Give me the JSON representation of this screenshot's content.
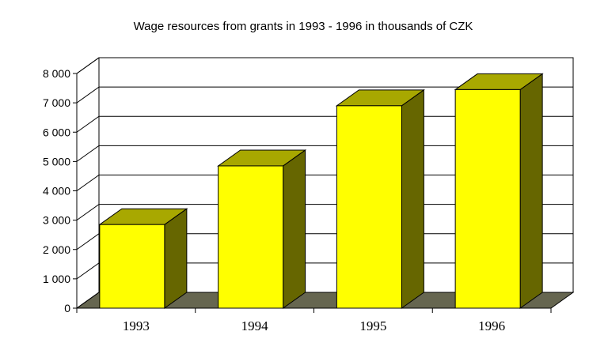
{
  "chart_data": {
    "type": "bar",
    "title": "Wage resources from grants in 1993 - 1996 in thousands of CZK",
    "xlabel": "",
    "ylabel": "",
    "categories": [
      "1993",
      "1994",
      "1995",
      "1996"
    ],
    "values": [
      2850,
      4850,
      6900,
      7450
    ],
    "ylim": [
      0,
      8000
    ],
    "yticks": [
      0,
      1000,
      2000,
      3000,
      4000,
      5000,
      6000,
      7000,
      8000
    ],
    "ytick_labels": [
      "0",
      "1 000",
      "2 000",
      "3 000",
      "4 000",
      "5 000",
      "6 000",
      "7 000",
      "8 000"
    ],
    "grid": true,
    "legend": "none",
    "style": "3d-column",
    "colors": {
      "bar_front": "#ffff00",
      "bar_top": "#a8a800",
      "bar_side": "#666600",
      "floor": "#666650",
      "grid": "#000000"
    }
  }
}
